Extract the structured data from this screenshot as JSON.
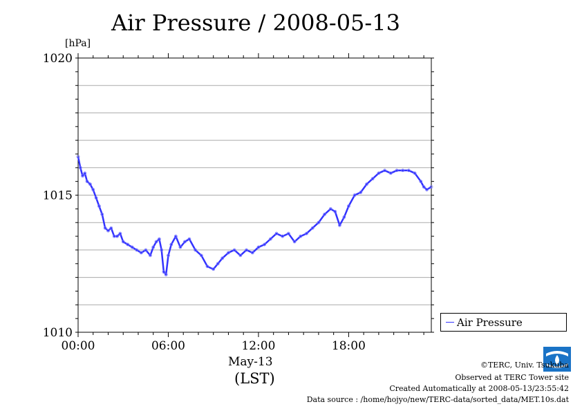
{
  "chart_data": {
    "type": "line",
    "title": "Air Pressure / 2008-05-13",
    "ylabel": "[hPa]",
    "ylim": [
      1010,
      1020
    ],
    "yticks": [
      "1010",
      "1015",
      "1020"
    ],
    "xlim": [
      0,
      23.5
    ],
    "xticks": [
      {
        "h": 0,
        "label": "00:00"
      },
      {
        "h": 6,
        "label": "06:00"
      },
      {
        "h": 12,
        "label": "12:00"
      },
      {
        "h": 18,
        "label": "18:00"
      }
    ],
    "xlabel_date": "May-13",
    "xlabel_zone": "(LST)",
    "grid": true,
    "legend_position": "right",
    "series": [
      {
        "name": "Air Pressure",
        "color": "#3333ff",
        "x": [
          0.0,
          0.15,
          0.3,
          0.45,
          0.6,
          0.8,
          1.0,
          1.2,
          1.4,
          1.6,
          1.8,
          2.0,
          2.2,
          2.4,
          2.6,
          2.8,
          3.0,
          3.3,
          3.6,
          3.9,
          4.2,
          4.5,
          4.8,
          5.0,
          5.2,
          5.4,
          5.55,
          5.7,
          5.85,
          6.0,
          6.2,
          6.5,
          6.8,
          7.1,
          7.4,
          7.8,
          8.2,
          8.6,
          9.0,
          9.3,
          9.6,
          10.0,
          10.4,
          10.8,
          11.2,
          11.6,
          12.0,
          12.4,
          12.8,
          13.2,
          13.6,
          14.0,
          14.4,
          14.8,
          15.2,
          15.6,
          16.0,
          16.4,
          16.8,
          17.1,
          17.4,
          17.7,
          18.0,
          18.4,
          18.8,
          19.2,
          19.6,
          20.0,
          20.4,
          20.8,
          21.2,
          21.6,
          22.0,
          22.4,
          22.8,
          23.0,
          23.2,
          23.5
        ],
        "y": [
          1016.4,
          1016.0,
          1015.7,
          1015.8,
          1015.5,
          1015.4,
          1015.2,
          1014.9,
          1014.6,
          1014.3,
          1013.8,
          1013.7,
          1013.8,
          1013.5,
          1013.5,
          1013.6,
          1013.3,
          1013.2,
          1013.1,
          1013.0,
          1012.9,
          1013.0,
          1012.8,
          1013.1,
          1013.3,
          1013.4,
          1013.0,
          1012.2,
          1012.1,
          1012.8,
          1013.2,
          1013.5,
          1013.1,
          1013.3,
          1013.4,
          1013.0,
          1012.8,
          1012.4,
          1012.3,
          1012.5,
          1012.7,
          1012.9,
          1013.0,
          1012.8,
          1013.0,
          1012.9,
          1013.1,
          1013.2,
          1013.4,
          1013.6,
          1013.5,
          1013.6,
          1013.3,
          1013.5,
          1013.6,
          1013.8,
          1014.0,
          1014.3,
          1014.5,
          1014.4,
          1013.9,
          1014.2,
          1014.6,
          1015.0,
          1015.1,
          1015.4,
          1015.6,
          1015.8,
          1015.9,
          1015.8,
          1015.9,
          1015.9,
          1015.9,
          1015.8,
          1015.5,
          1015.3,
          1015.2,
          1015.3
        ]
      }
    ]
  },
  "credits": {
    "copyright": "©TERC, Univ. Tsukuba",
    "observed": "Observed at TERC Tower site",
    "created": "Created Automatically at 2008-05-13/23:55:42",
    "source": "Data source : /home/hojyo/new/TERC-data/sorted_data/MET.10s.dat",
    "logo_text": "TERC"
  }
}
